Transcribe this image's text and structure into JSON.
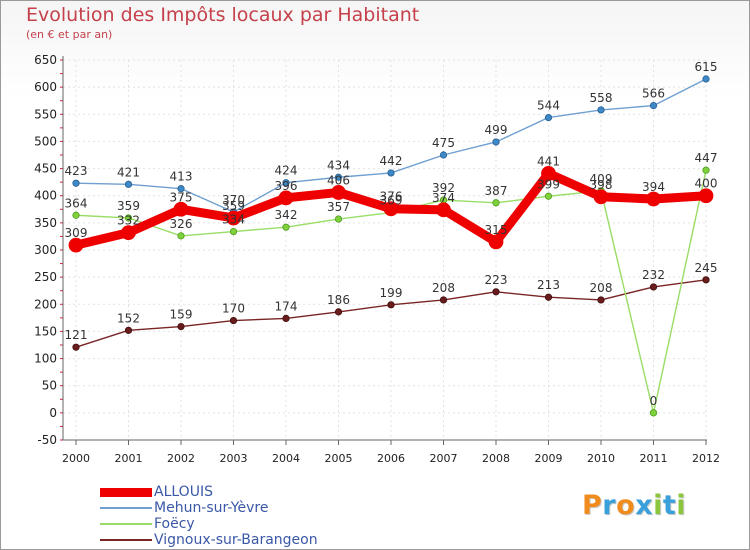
{
  "title": "Evolution des Impôts locaux par Habitant",
  "subtitle": "(en € et par an)",
  "logo": {
    "text": "Proxiti",
    "colors": [
      "#f08c1e",
      "#3aa0dc",
      "#f08c1e",
      "#3aa0dc",
      "#8cc63f",
      "#3aa0dc",
      "#8cc63f"
    ]
  },
  "chart_data": {
    "type": "line",
    "title": "Evolution des Impôts locaux par Habitant",
    "ylabel": "(en € et par an)",
    "x": [
      "2000",
      "2001",
      "2002",
      "2003",
      "2004",
      "2005",
      "2006",
      "2007",
      "2008",
      "2009",
      "2010",
      "2011",
      "2012"
    ],
    "ylim": [
      -50,
      650
    ],
    "yticks": [
      -50,
      0,
      50,
      100,
      150,
      200,
      250,
      300,
      350,
      400,
      450,
      500,
      550,
      600,
      650
    ],
    "grid": true,
    "legend_position": "bottom-left",
    "series": [
      {
        "name": "ALLOUIS",
        "color": "#ee0000",
        "values": [
          309,
          332,
          375,
          359,
          396,
          406,
          376,
          374,
          315,
          441,
          398,
          394,
          400
        ],
        "labels": [
          "309",
          "332",
          "375",
          "359",
          "396",
          "406",
          "376",
          "374",
          "315",
          "441",
          "398",
          "394",
          "400"
        ]
      },
      {
        "name": "Mehun-sur-Yèvre",
        "color": "#6f9fd0",
        "values": [
          423,
          421,
          413,
          370,
          424,
          434,
          442,
          475,
          499,
          544,
          558,
          566,
          615
        ],
        "labels": [
          "423",
          "421",
          "413",
          "370",
          "424",
          "434",
          "442",
          "475",
          "499",
          "544",
          "558",
          "566",
          "615"
        ]
      },
      {
        "name": "Foëcy",
        "color": "#99dd66",
        "values": [
          364,
          359,
          326,
          334,
          342,
          357,
          369,
          392,
          387,
          399,
          409,
          0,
          447
        ],
        "labels": [
          "364",
          "359",
          "326",
          "334",
          "342",
          "357",
          "369",
          "392",
          "387",
          "399",
          "409",
          "0",
          "447"
        ]
      },
      {
        "name": "Vignoux-sur-Barangeon",
        "color": "#7a2525",
        "values": [
          121,
          152,
          159,
          170,
          174,
          186,
          199,
          208,
          223,
          213,
          208,
          232,
          245
        ],
        "labels": [
          "121",
          "152",
          "159",
          "170",
          "174",
          "186",
          "199",
          "208",
          "223",
          "213",
          "208",
          "232",
          "245"
        ]
      }
    ]
  }
}
